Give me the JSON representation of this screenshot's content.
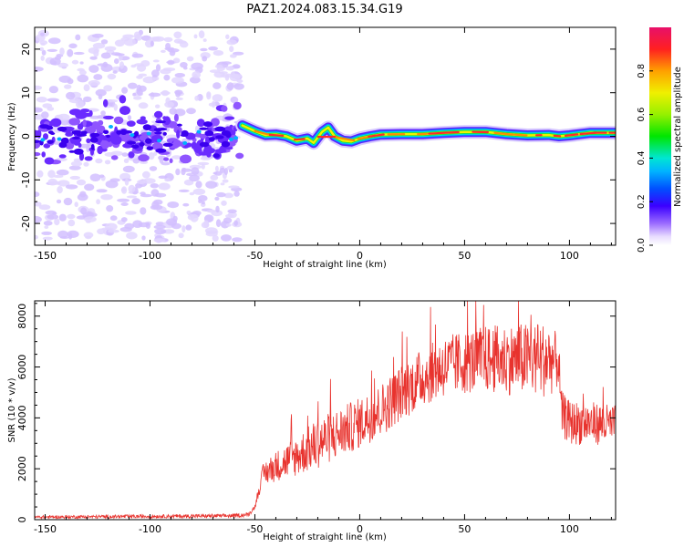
{
  "figure_title": "PAZ1.2024.083.15.34.G19",
  "chart_data": [
    {
      "type": "heatmap",
      "xlabel": "Height of straight line (km)",
      "ylabel": "Frequency (Hz)",
      "xlim": [
        -155,
        122
      ],
      "ylim": [
        -25,
        25
      ],
      "xticks": [
        -150,
        -100,
        -50,
        0,
        50,
        100
      ],
      "yticks": [
        -20,
        -10,
        0,
        10,
        20
      ],
      "colorbar": {
        "label": "Normalized spectral amplitude",
        "range": [
          0,
          1
        ],
        "ticks": [
          0.0,
          0.2,
          0.4,
          0.6,
          0.8
        ]
      },
      "noise_region_x": [
        -155,
        -57
      ],
      "signal_ridge": {
        "x": [
          -56,
          -50,
          -45,
          -40,
          -35,
          -30,
          -25,
          -22,
          -18,
          -15,
          -12,
          -8,
          -4,
          0,
          5,
          10,
          20,
          30,
          40,
          50,
          60,
          70,
          80,
          90,
          95,
          100,
          105,
          110,
          115,
          122
        ],
        "freq": [
          2.5,
          1.2,
          0.3,
          0.4,
          0.0,
          -1.0,
          -0.5,
          -1.5,
          1.0,
          2.0,
          0.0,
          -1.0,
          -1.2,
          -0.5,
          0.0,
          0.4,
          0.5,
          0.5,
          0.8,
          1.0,
          1.0,
          0.5,
          0.2,
          0.3,
          0.0,
          0.2,
          0.5,
          0.8,
          0.8,
          0.8
        ]
      }
    },
    {
      "type": "line",
      "xlabel": "Height of straight line (km)",
      "ylabel": "SNR (10 * v/v)",
      "xlim": [
        -155,
        122
      ],
      "ylim": [
        0,
        8600
      ],
      "xticks": [
        -150,
        -100,
        -50,
        0,
        50,
        100
      ],
      "yticks": [
        0,
        2000,
        4000,
        6000,
        8000
      ],
      "series": [
        {
          "color": "#e8332e",
          "envelope_x": [
            -155,
            -60,
            -53,
            -50,
            -48,
            -46,
            -40,
            -30,
            -20,
            -10,
            -5,
            0,
            10,
            20,
            30,
            40,
            50,
            60,
            70,
            80,
            90,
            95,
            96,
            100,
            110,
            122
          ],
          "envelope_y": [
            100,
            150,
            200,
            500,
            1200,
            1800,
            2100,
            2500,
            3000,
            3400,
            3600,
            3800,
            4300,
            5000,
            5600,
            6000,
            6200,
            6300,
            6300,
            6300,
            6300,
            6200,
            4200,
            3800,
            3800,
            3700
          ],
          "noise_amplitude_x": [
            -155,
            -50,
            -45,
            -30,
            -20,
            0,
            40,
            70,
            90,
            96,
            122
          ],
          "noise_amplitude_y": [
            60,
            80,
            500,
            800,
            1000,
            1000,
            1200,
            1400,
            1500,
            900,
            800
          ]
        }
      ]
    }
  ]
}
